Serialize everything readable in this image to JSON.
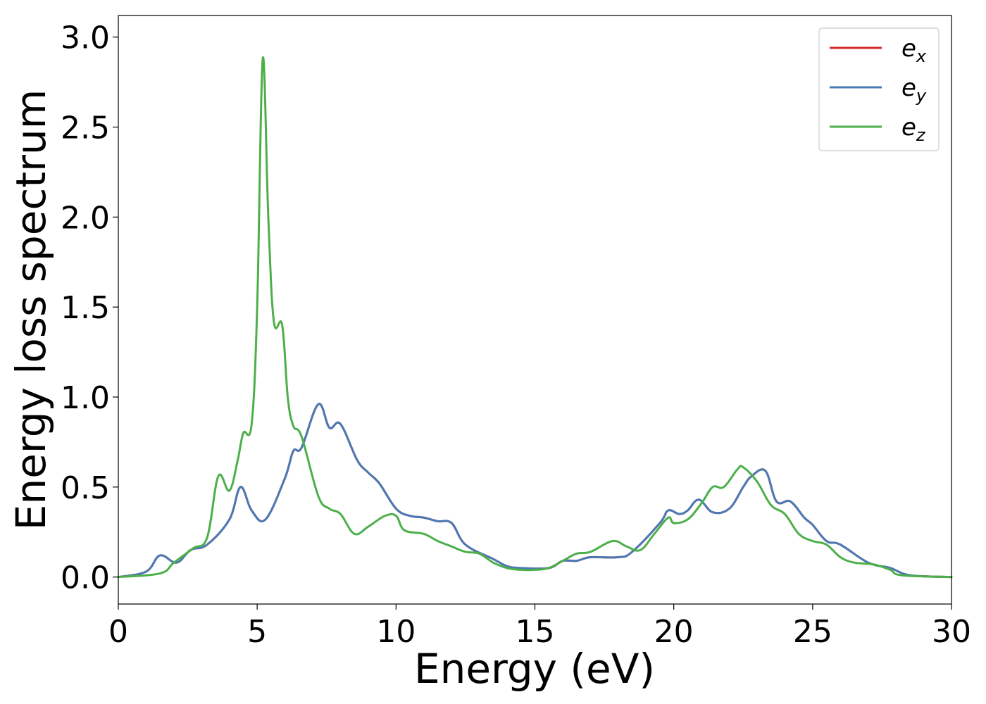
{
  "chart_data": {
    "type": "line",
    "title": "",
    "xlabel": "Energy (eV)",
    "ylabel": "Energy loss spectrum",
    "xlim": [
      0,
      30
    ],
    "ylim": [
      -0.15,
      3.12
    ],
    "xticks": [
      0,
      5,
      10,
      15,
      20,
      25,
      30
    ],
    "xtick_labels": [
      "0",
      "5",
      "10",
      "15",
      "20",
      "25",
      "30"
    ],
    "yticks": [
      0.0,
      0.5,
      1.0,
      1.5,
      2.0,
      2.5,
      3.0
    ],
    "ytick_labels": [
      "0.0",
      "0.5",
      "1.0",
      "1.5",
      "2.0",
      "2.5",
      "3.0"
    ],
    "grid": false,
    "legend_position": "top-right",
    "series": [
      {
        "name": "e_x",
        "label_base": "e",
        "label_sub": "x",
        "color": "#d62728",
        "hidden_behind": "e_y",
        "x": [
          0,
          1.0,
          1.5,
          2.1,
          2.6,
          3.2,
          4.0,
          4.4,
          4.8,
          5.3,
          6.0,
          6.3,
          6.6,
          7.2,
          7.6,
          8.0,
          8.6,
          9.0,
          9.4,
          10.0,
          10.5,
          11.0,
          11.5,
          12.0,
          12.5,
          13.5,
          14.0,
          14.5,
          15.5,
          16.0,
          16.5,
          17.0,
          18.0,
          18.5,
          19.5,
          19.8,
          20.2,
          20.5,
          20.9,
          21.4,
          22.0,
          22.5,
          22.8,
          23.3,
          23.7,
          24.2,
          24.7,
          25.0,
          25.5,
          26.0,
          27.0,
          27.8,
          28.5,
          30.0
        ],
        "y": [
          0.0,
          0.03,
          0.12,
          0.08,
          0.15,
          0.18,
          0.32,
          0.5,
          0.37,
          0.32,
          0.55,
          0.7,
          0.72,
          0.96,
          0.83,
          0.85,
          0.65,
          0.58,
          0.52,
          0.38,
          0.34,
          0.33,
          0.31,
          0.3,
          0.18,
          0.1,
          0.06,
          0.05,
          0.05,
          0.09,
          0.09,
          0.11,
          0.11,
          0.14,
          0.3,
          0.37,
          0.35,
          0.37,
          0.43,
          0.36,
          0.38,
          0.5,
          0.56,
          0.59,
          0.42,
          0.42,
          0.33,
          0.29,
          0.2,
          0.18,
          0.08,
          0.05,
          0.01,
          0.0
        ]
      },
      {
        "name": "e_y",
        "label_base": "e",
        "label_sub": "y",
        "color": "#4a7ab5",
        "x": [
          0,
          1.0,
          1.5,
          2.1,
          2.6,
          3.2,
          4.0,
          4.4,
          4.8,
          5.3,
          6.0,
          6.3,
          6.6,
          7.2,
          7.6,
          8.0,
          8.6,
          9.0,
          9.4,
          10.0,
          10.5,
          11.0,
          11.5,
          12.0,
          12.5,
          13.5,
          14.0,
          14.5,
          15.5,
          16.0,
          16.5,
          17.0,
          18.0,
          18.5,
          19.5,
          19.8,
          20.2,
          20.5,
          20.9,
          21.4,
          22.0,
          22.5,
          22.8,
          23.3,
          23.7,
          24.2,
          24.7,
          25.0,
          25.5,
          26.0,
          27.0,
          27.8,
          28.5,
          30.0
        ],
        "y": [
          0.0,
          0.03,
          0.12,
          0.08,
          0.15,
          0.18,
          0.32,
          0.5,
          0.37,
          0.32,
          0.55,
          0.7,
          0.72,
          0.96,
          0.83,
          0.85,
          0.65,
          0.58,
          0.52,
          0.38,
          0.34,
          0.33,
          0.31,
          0.3,
          0.18,
          0.1,
          0.06,
          0.05,
          0.05,
          0.09,
          0.09,
          0.11,
          0.11,
          0.14,
          0.3,
          0.37,
          0.35,
          0.37,
          0.43,
          0.36,
          0.38,
          0.5,
          0.56,
          0.59,
          0.42,
          0.42,
          0.33,
          0.29,
          0.2,
          0.18,
          0.08,
          0.05,
          0.01,
          0.0
        ]
      },
      {
        "name": "e_z",
        "label_base": "e",
        "label_sub": "z",
        "color": "#4daf4a",
        "x": [
          0,
          1.5,
          2.0,
          2.7,
          3.2,
          3.6,
          4.0,
          4.3,
          4.5,
          4.8,
          5.0,
          5.2,
          5.4,
          5.6,
          5.9,
          6.1,
          6.3,
          6.6,
          7.2,
          7.6,
          8.0,
          8.5,
          9.0,
          9.6,
          10.0,
          10.3,
          11.0,
          11.5,
          12.0,
          12.5,
          13.0,
          13.5,
          14.0,
          14.5,
          15.0,
          15.5,
          16.0,
          16.5,
          17.0,
          17.8,
          18.3,
          18.8,
          19.3,
          19.8,
          20.0,
          20.5,
          21.0,
          21.4,
          21.8,
          22.3,
          22.5,
          23.0,
          23.5,
          24.0,
          24.5,
          25.0,
          25.5,
          26.0,
          26.5,
          27.2,
          27.8,
          28.2,
          30.0
        ],
        "y": [
          0.0,
          0.02,
          0.08,
          0.16,
          0.22,
          0.56,
          0.48,
          0.65,
          0.8,
          0.85,
          1.5,
          2.88,
          2.0,
          1.42,
          1.4,
          1.0,
          0.84,
          0.78,
          0.45,
          0.38,
          0.35,
          0.24,
          0.28,
          0.34,
          0.34,
          0.26,
          0.24,
          0.2,
          0.17,
          0.14,
          0.13,
          0.08,
          0.05,
          0.04,
          0.04,
          0.05,
          0.09,
          0.13,
          0.14,
          0.2,
          0.17,
          0.15,
          0.24,
          0.33,
          0.3,
          0.32,
          0.41,
          0.5,
          0.5,
          0.6,
          0.61,
          0.53,
          0.4,
          0.35,
          0.24,
          0.2,
          0.18,
          0.11,
          0.08,
          0.07,
          0.04,
          0.01,
          0.0
        ]
      }
    ]
  }
}
